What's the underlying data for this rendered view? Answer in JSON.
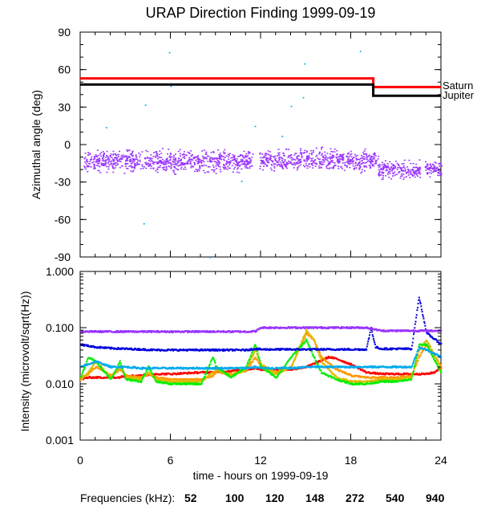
{
  "title": "URAP Direction Finding  1999-09-19",
  "colors": {
    "saturn": "#ff0000",
    "jupiter": "#000000",
    "azimuth_points": "#9933ff",
    "cyan_points": "#00aaee"
  },
  "chart_data": [
    {
      "type": "line",
      "panel": "top",
      "ylabel": "Azimuthal angle (deg)",
      "xlim": [
        0,
        24
      ],
      "ylim": [
        -90,
        90
      ],
      "yticks": [
        90,
        60,
        30,
        0,
        -30,
        -60,
        -90
      ],
      "xticks": [
        0,
        6,
        12,
        18,
        24
      ],
      "series": [
        {
          "name": "Saturn",
          "color": "#ff0000",
          "x": [
            0,
            19.5,
            19.5,
            24
          ],
          "y": [
            53,
            53,
            46,
            46
          ]
        },
        {
          "name": "Jupiter",
          "color": "#000000",
          "x": [
            0,
            19.5,
            19.5,
            24
          ],
          "y": [
            48,
            48,
            39,
            39
          ]
        }
      ],
      "scatter_band": {
        "color": "#9933ff",
        "segments": [
          {
            "x_start": 0.2,
            "x_end": 11.5,
            "y_center": -13,
            "y_spread": 12
          },
          {
            "x_start": 11.9,
            "x_end": 19.8,
            "y_center": -12,
            "y_spread": 12
          },
          {
            "x_start": 19.8,
            "x_end": 22.6,
            "y_center": -20,
            "y_spread": 10
          },
          {
            "x_start": 22.9,
            "x_end": 24,
            "y_center": -19,
            "y_spread": 9
          }
        ]
      },
      "outliers": [
        {
          "x": 5.9,
          "y": 74
        },
        {
          "x": 14.9,
          "y": 65
        },
        {
          "x": 18.6,
          "y": 75
        },
        {
          "x": 6.0,
          "y": 47
        },
        {
          "x": 14.8,
          "y": 38
        },
        {
          "x": 14.0,
          "y": 31
        },
        {
          "x": 4.3,
          "y": 32
        },
        {
          "x": 1.7,
          "y": 14
        },
        {
          "x": 11.6,
          "y": 15
        },
        {
          "x": 13.4,
          "y": 7
        },
        {
          "x": 4.2,
          "y": -63
        },
        {
          "x": 8.6,
          "y": -90
        },
        {
          "x": 10.7,
          "y": -29
        }
      ]
    },
    {
      "type": "line",
      "panel": "bottom",
      "ylabel": "Intensity (microvolt/sqrt(Hz))",
      "xlabel": "time - hours on 1999-09-19",
      "xlim": [
        0,
        24
      ],
      "ylim": [
        0.001,
        1.0
      ],
      "yscale": "log",
      "ytick_labels": [
        "1.000",
        "0.100",
        "0.010",
        "0.001"
      ],
      "xticks": [
        0,
        6,
        12,
        18,
        24
      ],
      "series": [
        {
          "name": "52",
          "color": "#ff0000",
          "x": [
            0,
            0.5,
            1.5,
            2.5,
            3,
            4,
            5,
            6,
            8,
            9,
            10,
            11,
            11.6,
            12,
            13,
            14,
            15,
            16,
            16.5,
            17,
            18,
            19,
            20,
            21,
            22,
            23,
            23.5,
            24
          ],
          "y": [
            0.012,
            0.013,
            0.013,
            0.013,
            0.014,
            0.014,
            0.015,
            0.015,
            0.016,
            0.016,
            0.017,
            0.018,
            0.019,
            0.018,
            0.018,
            0.018,
            0.02,
            0.026,
            0.03,
            0.028,
            0.022,
            0.016,
            0.015,
            0.015,
            0.015,
            0.015,
            0.016,
            0.02
          ]
        },
        {
          "name": "100",
          "color": "#ff9900",
          "x": [
            0,
            0.5,
            1,
            1.5,
            2,
            2.6,
            3,
            4,
            4.5,
            5,
            6,
            7,
            8,
            8.8,
            9,
            10,
            11,
            11.6,
            12,
            13,
            14,
            15,
            15.5,
            16,
            17,
            18,
            19,
            20,
            21,
            22,
            22.5,
            23,
            24
          ],
          "y": [
            0.013,
            0.015,
            0.02,
            0.017,
            0.014,
            0.018,
            0.014,
            0.013,
            0.015,
            0.013,
            0.012,
            0.012,
            0.012,
            0.014,
            0.016,
            0.015,
            0.017,
            0.03,
            0.02,
            0.016,
            0.02,
            0.08,
            0.06,
            0.03,
            0.018,
            0.014,
            0.013,
            0.013,
            0.013,
            0.014,
            0.03,
            0.05,
            0.02
          ]
        },
        {
          "name": "120",
          "color": "#ddbb00",
          "x": [
            0,
            0.5,
            1,
            1.5,
            2,
            2.6,
            3,
            4,
            4.5,
            5,
            6,
            7,
            8,
            8.8,
            9,
            10,
            11,
            11.6,
            12,
            13,
            14,
            15,
            15.5,
            16,
            17,
            18,
            19,
            20,
            21,
            22,
            22.5,
            23,
            24
          ],
          "y": [
            0.012,
            0.016,
            0.025,
            0.018,
            0.013,
            0.02,
            0.013,
            0.012,
            0.016,
            0.012,
            0.011,
            0.011,
            0.011,
            0.016,
            0.018,
            0.014,
            0.018,
            0.04,
            0.022,
            0.015,
            0.02,
            0.09,
            0.06,
            0.025,
            0.013,
            0.011,
            0.011,
            0.012,
            0.012,
            0.013,
            0.04,
            0.06,
            0.018
          ]
        },
        {
          "name": "148",
          "color": "#00ee00",
          "x": [
            0,
            0.5,
            1,
            1.5,
            2,
            2.6,
            3,
            4,
            4.5,
            5,
            6,
            7,
            8,
            8.8,
            9,
            10,
            11,
            11.6,
            12,
            13,
            14,
            15,
            15.5,
            16,
            17,
            18,
            19,
            20,
            21,
            22,
            22.5,
            23,
            24
          ],
          "y": [
            0.013,
            0.03,
            0.025,
            0.017,
            0.012,
            0.025,
            0.012,
            0.011,
            0.02,
            0.011,
            0.01,
            0.01,
            0.01,
            0.03,
            0.02,
            0.013,
            0.02,
            0.05,
            0.02,
            0.013,
            0.03,
            0.06,
            0.03,
            0.016,
            0.012,
            0.01,
            0.01,
            0.011,
            0.011,
            0.012,
            0.05,
            0.05,
            0.015
          ]
        },
        {
          "name": "272",
          "color": "#00aaee",
          "x": [
            0,
            1,
            2,
            3,
            4,
            5,
            6,
            7,
            8,
            9,
            10,
            11,
            11.6,
            12,
            13,
            14,
            15,
            16,
            17,
            18,
            19,
            20,
            21,
            22,
            22.5,
            23,
            24
          ],
          "y": [
            0.02,
            0.025,
            0.02,
            0.02,
            0.019,
            0.019,
            0.019,
            0.019,
            0.019,
            0.019,
            0.019,
            0.019,
            0.02,
            0.019,
            0.019,
            0.019,
            0.02,
            0.02,
            0.02,
            0.02,
            0.02,
            0.02,
            0.02,
            0.02,
            0.045,
            0.04,
            0.03
          ]
        },
        {
          "name": "540",
          "color": "#0000dd",
          "x": [
            0,
            1,
            2,
            3,
            4,
            5,
            6,
            7,
            8,
            9,
            10,
            11,
            11.6,
            12,
            13,
            14,
            15,
            16,
            17,
            18,
            19,
            19.3,
            19.6,
            20,
            21,
            22,
            22.5,
            23,
            24
          ],
          "y": [
            0.05,
            0.045,
            0.043,
            0.042,
            0.041,
            0.04,
            0.04,
            0.04,
            0.04,
            0.04,
            0.04,
            0.04,
            0.042,
            0.041,
            0.041,
            0.041,
            0.041,
            0.041,
            0.041,
            0.041,
            0.041,
            0.1,
            0.045,
            0.042,
            0.042,
            0.042,
            0.35,
            0.08,
            0.05
          ]
        },
        {
          "name": "940",
          "color": "#9933ff",
          "x": [
            0,
            1,
            2,
            3,
            4,
            5,
            6,
            7,
            8,
            9,
            10,
            11,
            11.6,
            12,
            13,
            14,
            15,
            16,
            17,
            18,
            19,
            20,
            21,
            22,
            22.5,
            23,
            24
          ],
          "y": [
            0.085,
            0.085,
            0.085,
            0.085,
            0.085,
            0.085,
            0.085,
            0.085,
            0.085,
            0.085,
            0.085,
            0.085,
            0.086,
            0.1,
            0.1,
            0.1,
            0.1,
            0.1,
            0.1,
            0.1,
            0.1,
            0.088,
            0.088,
            0.088,
            0.088,
            0.088,
            0.088
          ]
        }
      ]
    }
  ],
  "legend": {
    "label": "Frequencies (kHz):",
    "items": [
      {
        "text": "52",
        "color": "#ff0000"
      },
      {
        "text": "100",
        "color": "#ff9900"
      },
      {
        "text": "120",
        "color": "#ddbb00"
      },
      {
        "text": "148",
        "color": "#00ee00"
      },
      {
        "text": "272",
        "color": "#00aaee"
      },
      {
        "text": "540",
        "color": "#0000dd"
      },
      {
        "text": "940",
        "color": "#9933ff"
      }
    ]
  },
  "planet_labels": {
    "saturn": "Saturn",
    "jupiter": "Jupiter"
  }
}
